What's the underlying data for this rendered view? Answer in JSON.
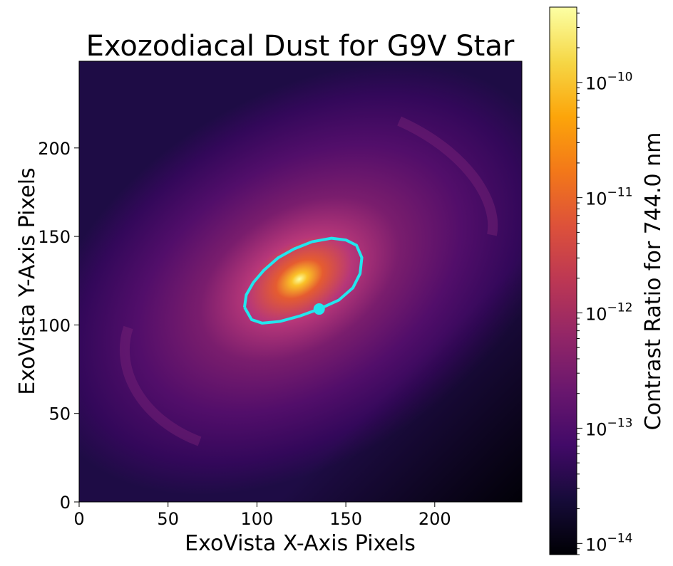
{
  "chart_data": {
    "type": "heatmap",
    "title": "Exozodiacal Dust for G9V Star",
    "xlabel": "ExoVista X-Axis Pixels",
    "ylabel": "ExoVista Y-Axis Pixels",
    "xlim": [
      0,
      249
    ],
    "ylim": [
      0,
      249
    ],
    "xticks": [
      0,
      50,
      100,
      150,
      200
    ],
    "yticks": [
      0,
      50,
      100,
      150,
      200
    ],
    "grid": false,
    "colormap": "inferno",
    "colorbar": {
      "label": "Contrast Ratio for 744.0 nm",
      "scale": "log",
      "range": [
        8e-15,
        4.5e-10
      ],
      "ticks": [
        {
          "value": 1e-14,
          "label": "10",
          "exp": "−14"
        },
        {
          "value": 1e-13,
          "label": "10",
          "exp": "−13"
        },
        {
          "value": 1e-12,
          "label": "10",
          "exp": "−12"
        },
        {
          "value": 1e-11,
          "label": "10",
          "exp": "−11"
        },
        {
          "value": 1e-10,
          "label": "10",
          "exp": "−10"
        }
      ]
    },
    "star_center": {
      "x": 124,
      "y": 125
    },
    "orbit": {
      "color": "#22e6ee",
      "points": [
        [
          93,
          110
        ],
        [
          94,
          117
        ],
        [
          98,
          124
        ],
        [
          104,
          131
        ],
        [
          112,
          138
        ],
        [
          121,
          143
        ],
        [
          131,
          147
        ],
        [
          142,
          149
        ],
        [
          150,
          148
        ],
        [
          156,
          145
        ],
        [
          159,
          138
        ],
        [
          158,
          129
        ],
        [
          154,
          121
        ],
        [
          146,
          114
        ],
        [
          135,
          109
        ],
        [
          124,
          105
        ],
        [
          113,
          102
        ],
        [
          103,
          101
        ],
        [
          97,
          103
        ],
        [
          93,
          110
        ]
      ]
    },
    "planet": {
      "x": 135,
      "y": 109,
      "color": "#22e6ee"
    }
  }
}
